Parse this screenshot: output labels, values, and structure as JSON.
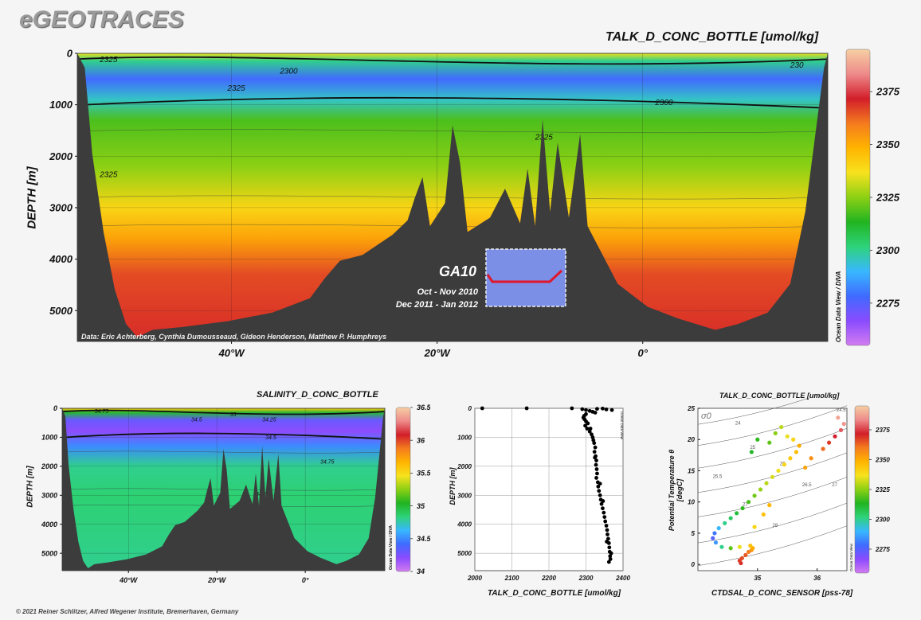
{
  "header": {
    "logo": "eGEOTRACES"
  },
  "footer": {
    "copyright": "© 2021 Reiner Schlitzer, Alfred Wegener Institute, Bremerhaven, Germany"
  },
  "colors": {
    "bathymetry": "#3c3c3c",
    "colorbar_stops": [
      "#d27cf0",
      "#8a4bff",
      "#3f6bff",
      "#38b8ff",
      "#2ed37a",
      "#21b421",
      "#8cd014",
      "#f7e21e",
      "#ffb400",
      "#f47b1e",
      "#d21e2a",
      "#ee8a8a",
      "#f6cfa3"
    ]
  },
  "chart_data": [
    {
      "id": "main_section",
      "type": "heatmap",
      "title": "TALK_D_CONC_BOTTLE [umol/kg]",
      "ylabel": "DEPTH [m]",
      "xlabel": "",
      "x_ticks": [
        "40°W",
        "20°W",
        "0°"
      ],
      "x_tick_values": [
        -40,
        -20,
        0
      ],
      "y_ticks": [
        "0",
        "1000",
        "2000",
        "3000",
        "4000",
        "5000"
      ],
      "y_tick_values": [
        0,
        1000,
        2000,
        3000,
        4000,
        5000
      ],
      "xlim": [
        -55,
        18
      ],
      "ylim": [
        5600,
        0
      ],
      "colorbar": {
        "ticks": [
          "2275",
          "2300",
          "2325",
          "2350",
          "2375"
        ],
        "tick_values": [
          2275,
          2300,
          2325,
          2350,
          2375
        ],
        "range": [
          2255,
          2395
        ]
      },
      "contour_labels": [
        "2325",
        "2300",
        "2325",
        "2300",
        "2325",
        "2325",
        "230"
      ],
      "layers": [
        {
          "depth": 0,
          "value": 2335
        },
        {
          "depth": 150,
          "value": 2300
        },
        {
          "depth": 500,
          "value": 2278
        },
        {
          "depth": 900,
          "value": 2295
        },
        {
          "depth": 1300,
          "value": 2318
        },
        {
          "depth": 2200,
          "value": 2325
        },
        {
          "depth": 3000,
          "value": 2340
        },
        {
          "depth": 3600,
          "value": 2352
        },
        {
          "depth": 4300,
          "value": 2366
        },
        {
          "depth": 5600,
          "value": 2370
        }
      ],
      "annotations": {
        "data_credit": "Data: Eric Achterberg, Cynthia Dumousseaud, Gideon Henderson, Matthew P. Humphreys",
        "cruise": "GA10",
        "period1": "Oct - Nov 2010",
        "period2": "Dec 2011 - Jan 2012",
        "watermark": "Ocean Data View / DIVA"
      }
    },
    {
      "id": "salinity_section",
      "type": "heatmap",
      "title": "SALINITY_D_CONC_BOTTLE",
      "ylabel": "DEPTH [m]",
      "xlabel": "",
      "x_ticks": [
        "40°W",
        "20°W",
        "0°"
      ],
      "x_tick_values": [
        -40,
        -20,
        0
      ],
      "y_ticks": [
        "0",
        "1000",
        "2000",
        "3000",
        "4000",
        "5000"
      ],
      "y_tick_values": [
        0,
        1000,
        2000,
        3000,
        4000,
        5000
      ],
      "xlim": [
        -55,
        18
      ],
      "ylim": [
        5600,
        0
      ],
      "colorbar": {
        "ticks": [
          "34",
          "34.5",
          "35",
          "35.5",
          "36",
          "36.5"
        ],
        "tick_values": [
          34,
          34.5,
          35,
          35.5,
          36,
          36.5
        ],
        "range": [
          34,
          36.5
        ]
      },
      "contour_labels": [
        "34.75",
        "35",
        "34.5",
        "34.25",
        "34.5",
        "34.75",
        "34.75"
      ],
      "layers": [
        {
          "depth": 0,
          "value": 35.6
        },
        {
          "depth": 150,
          "value": 35.0
        },
        {
          "depth": 400,
          "value": 34.3
        },
        {
          "depth": 800,
          "value": 34.2
        },
        {
          "depth": 1300,
          "value": 34.5
        },
        {
          "depth": 2000,
          "value": 34.8
        },
        {
          "depth": 3000,
          "value": 34.85
        },
        {
          "depth": 5600,
          "value": 34.8
        }
      ],
      "watermark": "Ocean Data View / DIVA"
    },
    {
      "id": "profile_scatter",
      "type": "scatter",
      "title": "",
      "xlabel": "TALK_D_CONC_BOTTLE [umol/kg]",
      "ylabel": "DEPTH [m]",
      "x_ticks": [
        "2000",
        "2100",
        "2200",
        "2300",
        "2400"
      ],
      "x_tick_values": [
        2000,
        2100,
        2200,
        2300,
        2400
      ],
      "y_ticks": [
        "0",
        "1000",
        "2000",
        "3000",
        "4000",
        "5000"
      ],
      "y_tick_values": [
        0,
        1000,
        2000,
        3000,
        4000,
        5000
      ],
      "xlim": [
        2000,
        2400
      ],
      "ylim": [
        5600,
        0
      ],
      "watermark": "Ocean Data View",
      "points": [
        [
          2020,
          0
        ],
        [
          2140,
          0
        ],
        [
          2262,
          0
        ],
        [
          2290,
          30
        ],
        [
          2300,
          60
        ],
        [
          2330,
          20
        ],
        [
          2345,
          10
        ],
        [
          2355,
          40
        ],
        [
          2370,
          60
        ],
        [
          2310,
          90
        ],
        [
          2318,
          120
        ],
        [
          2325,
          150
        ],
        [
          2300,
          200
        ],
        [
          2295,
          260
        ],
        [
          2293,
          320
        ],
        [
          2296,
          380
        ],
        [
          2300,
          450
        ],
        [
          2305,
          520
        ],
        [
          2298,
          600
        ],
        [
          2303,
          700
        ],
        [
          2310,
          800
        ],
        [
          2315,
          900
        ],
        [
          2318,
          1000
        ],
        [
          2320,
          1100
        ],
        [
          2322,
          1200
        ],
        [
          2325,
          1350
        ],
        [
          2323,
          1500
        ],
        [
          2326,
          1650
        ],
        [
          2328,
          1800
        ],
        [
          2327,
          1950
        ],
        [
          2329,
          2100
        ],
        [
          2330,
          2250
        ],
        [
          2328,
          2400
        ],
        [
          2332,
          2550
        ],
        [
          2333,
          2700
        ],
        [
          2335,
          2850
        ],
        [
          2338,
          3000
        ],
        [
          2340,
          3150
        ],
        [
          2342,
          3300
        ],
        [
          2345,
          3450
        ],
        [
          2348,
          3600
        ],
        [
          2350,
          3750
        ],
        [
          2352,
          3900
        ],
        [
          2355,
          4050
        ],
        [
          2357,
          4200
        ],
        [
          2358,
          4350
        ],
        [
          2360,
          4500
        ],
        [
          2362,
          4650
        ],
        [
          2363,
          4800
        ],
        [
          2364,
          4950
        ],
        [
          2365,
          5100
        ],
        [
          2366,
          5200
        ],
        [
          2362,
          5300
        ],
        [
          2368,
          5000
        ],
        [
          2356,
          4600
        ],
        [
          2346,
          3200
        ],
        [
          2338,
          2600
        ],
        [
          2324,
          1700
        ],
        [
          2312,
          700
        ]
      ]
    },
    {
      "id": "ts_scatter",
      "type": "scatter",
      "title": "TALK_D_CONC_BOTTLE [umol/kg]",
      "xlabel": "CTDSAL_D_CONC_SENSOR [pss-78]",
      "ylabel": "Potential Temperature θ [degC]",
      "x_ticks": [
        "35",
        "36"
      ],
      "x_tick_values": [
        35,
        36
      ],
      "y_ticks": [
        "0",
        "5",
        "10",
        "15",
        "20",
        "25"
      ],
      "y_tick_values": [
        0,
        5,
        10,
        15,
        20,
        25
      ],
      "xlim": [
        34.0,
        36.5
      ],
      "ylim": [
        -1,
        25
      ],
      "isopycnal_label": "σ0",
      "isopycnal_labels": [
        "24",
        "25",
        "25.5",
        "26",
        "26.5",
        "27",
        "27",
        "28",
        "24.5"
      ],
      "colorbar": {
        "ticks": [
          "2275",
          "2300",
          "2325",
          "2350",
          "2375"
        ],
        "tick_values": [
          2275,
          2300,
          2325,
          2350,
          2375
        ],
        "range": [
          2255,
          2395
        ]
      },
      "watermark": "Ocean Data View",
      "points": [
        [
          34.72,
          0.2,
          2370
        ],
        [
          34.7,
          0.6,
          2368
        ],
        [
          34.74,
          1.0,
          2366
        ],
        [
          34.8,
          1.5,
          2364
        ],
        [
          34.85,
          2.0,
          2360
        ],
        [
          34.9,
          2.3,
          2355
        ],
        [
          34.92,
          2.6,
          2350
        ],
        [
          34.88,
          3.0,
          2345
        ],
        [
          34.7,
          2.8,
          2335
        ],
        [
          34.55,
          2.6,
          2320
        ],
        [
          34.4,
          2.8,
          2300
        ],
        [
          34.3,
          3.5,
          2285
        ],
        [
          34.25,
          4.2,
          2275
        ],
        [
          34.28,
          5.0,
          2280
        ],
        [
          34.35,
          5.8,
          2290
        ],
        [
          34.45,
          6.6,
          2300
        ],
        [
          34.55,
          7.4,
          2305
        ],
        [
          34.65,
          8.2,
          2310
        ],
        [
          34.75,
          9.0,
          2315
        ],
        [
          34.85,
          10.0,
          2318
        ],
        [
          34.95,
          11.0,
          2322
        ],
        [
          35.05,
          12.0,
          2326
        ],
        [
          35.15,
          13.0,
          2330
        ],
        [
          35.25,
          14.0,
          2333
        ],
        [
          35.35,
          15.0,
          2336
        ],
        [
          35.45,
          16.0,
          2340
        ],
        [
          35.55,
          17.0,
          2343
        ],
        [
          35.65,
          18.0,
          2346
        ],
        [
          35.7,
          19.0,
          2350
        ],
        [
          35.6,
          20.0,
          2340
        ],
        [
          35.5,
          20.5,
          2335
        ],
        [
          35.3,
          21.0,
          2325
        ],
        [
          35.2,
          19.5,
          2320
        ],
        [
          35.8,
          15.5,
          2352
        ],
        [
          35.9,
          17.0,
          2356
        ],
        [
          36.1,
          18.5,
          2362
        ],
        [
          36.2,
          19.5,
          2368
        ],
        [
          36.3,
          20.5,
          2372
        ],
        [
          36.4,
          21.5,
          2378
        ],
        [
          36.45,
          22.5,
          2385
        ],
        [
          36.35,
          23.5,
          2388
        ],
        [
          35.0,
          20.0,
          2315
        ],
        [
          34.9,
          18.0,
          2312
        ],
        [
          35.4,
          22.0,
          2330
        ],
        [
          34.95,
          6.0,
          2340
        ],
        [
          35.1,
          8.0,
          2345
        ],
        [
          35.2,
          9.5,
          2348
        ]
      ]
    }
  ]
}
